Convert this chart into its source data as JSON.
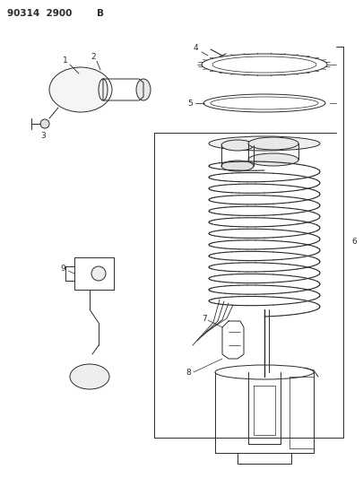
{
  "title": "90314  2900 B",
  "bg_color": "#ffffff",
  "line_color": "#2a2a2a",
  "fig_width": 4.05,
  "fig_height": 5.33,
  "dpi": 100
}
